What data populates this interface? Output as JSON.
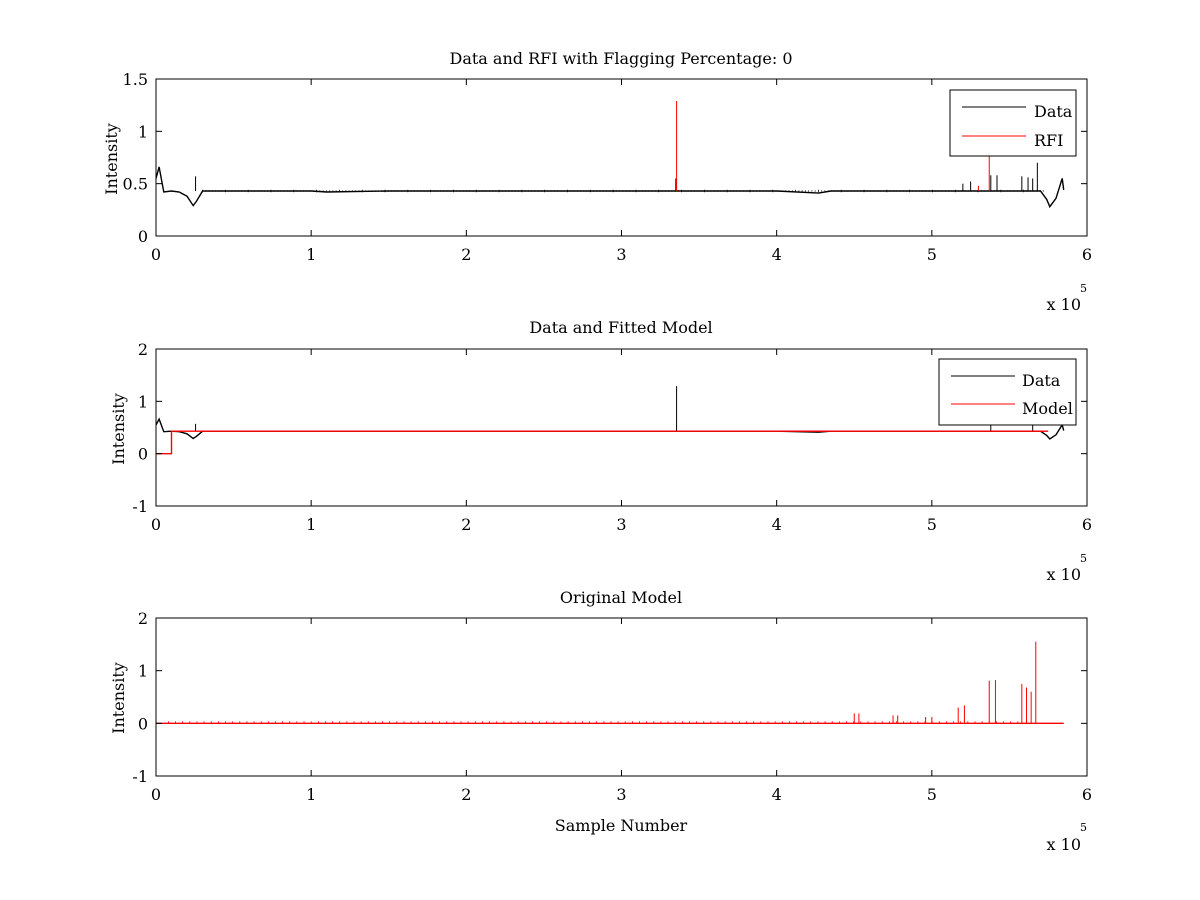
{
  "figure": {
    "background": "#ffffff",
    "exponent_label": "x 10",
    "exponent_power": "5"
  },
  "chart_data": [
    {
      "type": "line",
      "title": "Data and RFI with Flagging Percentage: 0",
      "xlabel": "",
      "ylabel": "Intensity",
      "xlim": [
        0,
        6
      ],
      "ylim": [
        0,
        1.5
      ],
      "xticks": [
        "0",
        "1",
        "2",
        "3",
        "4",
        "5",
        "6"
      ],
      "yticks": [
        "0",
        "0.5",
        "1",
        "1.5"
      ],
      "xscale_note": "x 10^5",
      "legend_position": "top-right",
      "grid": false,
      "series": [
        {
          "name": "Data",
          "color": "#000000",
          "baseline": 0.43,
          "x": [
            0.0,
            0.02,
            0.05,
            0.1,
            0.15,
            0.2,
            0.24,
            0.26,
            0.3,
            0.35,
            0.5,
            1.0,
            1.1,
            1.5,
            2.0,
            2.5,
            3.0,
            3.35,
            3.5,
            4.0,
            4.27,
            4.35,
            4.6,
            5.0,
            5.5,
            5.7,
            5.74,
            5.76,
            5.8,
            5.84,
            5.85
          ],
          "y": [
            0.55,
            0.66,
            0.42,
            0.43,
            0.42,
            0.38,
            0.29,
            0.33,
            0.43,
            0.43,
            0.43,
            0.43,
            0.42,
            0.43,
            0.43,
            0.43,
            0.43,
            0.43,
            0.43,
            0.43,
            0.41,
            0.43,
            0.43,
            0.43,
            0.43,
            0.43,
            0.35,
            0.28,
            0.36,
            0.55,
            0.44
          ],
          "spikes": [
            {
              "x": 0.255,
              "y": 0.57
            },
            {
              "x": 3.35,
              "y": 0.55
            },
            {
              "x": 5.2,
              "y": 0.5
            },
            {
              "x": 5.25,
              "y": 0.52
            },
            {
              "x": 5.38,
              "y": 0.58
            },
            {
              "x": 5.42,
              "y": 0.58
            },
            {
              "x": 5.58,
              "y": 0.57
            },
            {
              "x": 5.62,
              "y": 0.56
            },
            {
              "x": 5.65,
              "y": 0.55
            },
            {
              "x": 5.68,
              "y": 0.7
            }
          ]
        },
        {
          "name": "RFI",
          "color": "#ff0000",
          "spikes": [
            {
              "x": 3.355,
              "y": 1.29
            },
            {
              "x": 5.37,
              "y": 0.79
            },
            {
              "x": 5.3,
              "y": 0.48
            }
          ]
        }
      ]
    },
    {
      "type": "line",
      "title": "Data and Fitted Model",
      "xlabel": "",
      "ylabel": "Intensity",
      "xlim": [
        0,
        6
      ],
      "ylim": [
        -1,
        2
      ],
      "xticks": [
        "0",
        "1",
        "2",
        "3",
        "4",
        "5",
        "6"
      ],
      "yticks": [
        "-1",
        "0",
        "1",
        "2"
      ],
      "xscale_note": "x 10^5",
      "legend_position": "top-right",
      "grid": false,
      "series": [
        {
          "name": "Data",
          "color": "#000000",
          "x": [
            0.0,
            0.02,
            0.05,
            0.1,
            0.15,
            0.2,
            0.24,
            0.26,
            0.3,
            0.35,
            0.5,
            1.0,
            1.5,
            2.0,
            2.5,
            3.0,
            3.35,
            3.5,
            4.0,
            4.27,
            4.35,
            4.6,
            5.0,
            5.5,
            5.7,
            5.74,
            5.76,
            5.8,
            5.84,
            5.85
          ],
          "y": [
            0.55,
            0.66,
            0.42,
            0.43,
            0.42,
            0.38,
            0.29,
            0.33,
            0.43,
            0.43,
            0.43,
            0.43,
            0.43,
            0.43,
            0.43,
            0.43,
            0.43,
            0.43,
            0.43,
            0.41,
            0.43,
            0.43,
            0.43,
            0.43,
            0.43,
            0.35,
            0.28,
            0.36,
            0.55,
            0.44
          ],
          "spikes": [
            {
              "x": 0.255,
              "y": 0.57
            },
            {
              "x": 3.355,
              "y": 1.29
            },
            {
              "x": 5.38,
              "y": 0.58
            },
            {
              "x": 5.65,
              "y": 0.6
            }
          ]
        },
        {
          "name": "Model",
          "color": "#ff0000",
          "x": [
            0.0,
            0.1,
            0.1,
            0.11,
            0.5,
            1.0,
            2.0,
            3.0,
            4.0,
            5.0,
            5.75
          ],
          "y": [
            0.0,
            0.0,
            0.43,
            0.43,
            0.43,
            0.43,
            0.43,
            0.43,
            0.43,
            0.43,
            0.43
          ]
        }
      ]
    },
    {
      "type": "line",
      "title": "Original Model",
      "xlabel": "Sample Number",
      "ylabel": "Intensity",
      "xlim": [
        0,
        6
      ],
      "ylim": [
        -1,
        2
      ],
      "xticks": [
        "0",
        "1",
        "2",
        "3",
        "4",
        "5",
        "6"
      ],
      "yticks": [
        "-1",
        "0",
        "1",
        "2"
      ],
      "xscale_note": "x 10^5",
      "legend_position": "none",
      "grid": false,
      "series": [
        {
          "color": "#ff0000",
          "x": [
            0.0,
            5.85
          ],
          "y": [
            0.0,
            0.0
          ],
          "spikes": [
            {
              "x": 4.5,
              "y": 0.19
            },
            {
              "x": 4.53,
              "y": 0.19
            },
            {
              "x": 4.75,
              "y": 0.15
            },
            {
              "x": 4.78,
              "y": 0.15
            },
            {
              "x": 4.96,
              "y": 0.12
            },
            {
              "x": 5.0,
              "y": 0.12
            },
            {
              "x": 5.17,
              "y": 0.3
            },
            {
              "x": 5.21,
              "y": 0.34
            },
            {
              "x": 5.37,
              "y": 0.81
            },
            {
              "x": 5.41,
              "y": 0.82
            },
            {
              "x": 5.58,
              "y": 0.75
            },
            {
              "x": 5.61,
              "y": 0.68
            },
            {
              "x": 5.64,
              "y": 0.6
            },
            {
              "x": 5.67,
              "y": 1.55
            }
          ]
        }
      ]
    }
  ]
}
